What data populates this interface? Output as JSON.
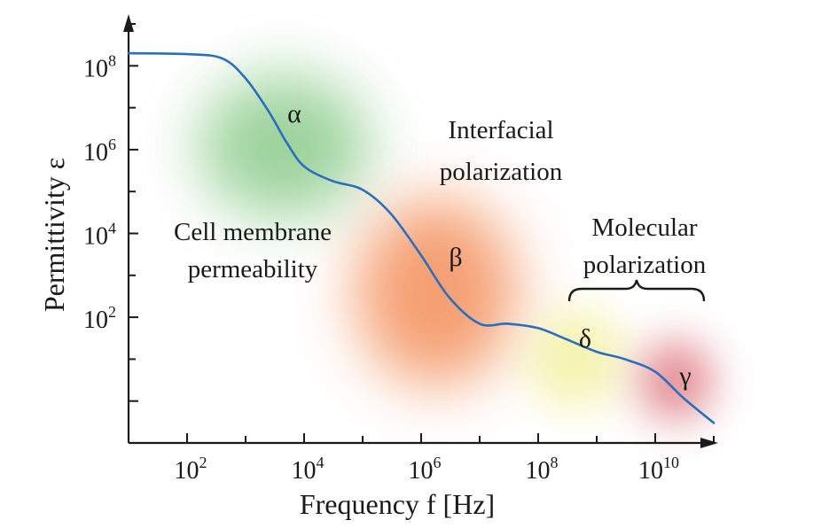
{
  "chart_data": {
    "type": "line",
    "xlabel": "Frequency f [Hz]",
    "ylabel": "Permittivity ε",
    "x_scale": "log",
    "y_scale": "log",
    "xlim": [
      10,
      100000000000
    ],
    "ylim": [
      0.1,
      1000000000
    ],
    "grid": false,
    "x_ticks": [
      {
        "base": "10",
        "exp": "2",
        "value": 100
      },
      {
        "base": "10",
        "exp": "4",
        "value": 10000
      },
      {
        "base": "10",
        "exp": "6",
        "value": 1000000
      },
      {
        "base": "10",
        "exp": "8",
        "value": 100000000
      },
      {
        "base": "10",
        "exp": "10",
        "value": 10000000000
      }
    ],
    "y_ticks": [
      {
        "base": "10",
        "exp": "8",
        "value": 100000000
      },
      {
        "base": "10",
        "exp": "6",
        "value": 1000000
      },
      {
        "base": "10",
        "exp": "4",
        "value": 10000
      },
      {
        "base": "10",
        "exp": "2",
        "value": 100
      }
    ],
    "series": [
      {
        "color": "#2a6fbf",
        "x": [
          10,
          100,
          400,
          1000,
          2500,
          5000,
          10000,
          30000,
          100000,
          300000,
          1000000,
          3000000,
          10000000,
          30000000,
          100000000,
          300000000,
          1000000000,
          3000000000,
          10000000000,
          30000000000,
          100000000000
        ],
        "y": [
          200000000,
          190000000,
          150000000,
          50000000,
          8000000,
          1500000,
          400000,
          180000,
          110000,
          30000,
          3000,
          300,
          70,
          70,
          55,
          30,
          15,
          10,
          5,
          1.2,
          0.3
        ]
      }
    ],
    "annotations": {
      "alpha": "α",
      "beta": "β",
      "delta": "δ",
      "gamma": "γ",
      "cell_membrane": [
        "Cell membrane",
        "permeability"
      ],
      "interfacial": [
        "Interfacial",
        "polarization"
      ],
      "molecular": [
        "Molecular",
        "polarization"
      ]
    },
    "region_colors": {
      "alpha": "#7cc47a",
      "beta": "#f3874f",
      "delta": "#f1ee8e",
      "gamma": "#d75a64"
    }
  }
}
